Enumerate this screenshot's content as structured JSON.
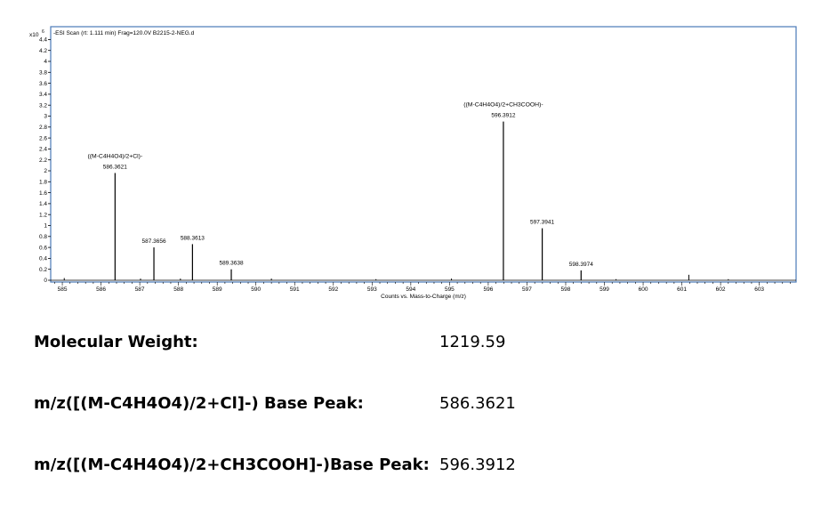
{
  "chart_data": {
    "type": "bar",
    "title": "-ESI Scan (rt: 1.111 min) Frag=120.0V B2215-2-NEG.d",
    "y_scale_label": "x10",
    "y_scale_exp": "6",
    "xlabel": "Counts vs. Mass-to-Charge (m/z)",
    "xlim": [
      584.7,
      603.95
    ],
    "ylim": [
      0,
      4.55
    ],
    "x_ticks": [
      585,
      586,
      587,
      588,
      589,
      590,
      591,
      592,
      593,
      594,
      595,
      596,
      597,
      598,
      599,
      600,
      601,
      602,
      603
    ],
    "y_ticks": [
      0,
      0.2,
      0.4,
      0.6,
      0.8,
      1,
      1.2,
      1.4,
      1.6,
      1.8,
      2,
      2.2,
      2.4,
      2.6,
      2.8,
      3,
      3.2,
      3.4,
      3.6,
      3.8,
      4,
      4.2,
      4.4
    ],
    "peaks": [
      {
        "x": 586.3621,
        "y": 1.96,
        "label": "586.3621"
      },
      {
        "x": 587.3656,
        "y": 0.6,
        "label": "587.3656"
      },
      {
        "x": 588.3613,
        "y": 0.66,
        "label": "588.3613"
      },
      {
        "x": 589.3638,
        "y": 0.2,
        "label": "589.3638"
      },
      {
        "x": 596.3912,
        "y": 2.9,
        "label": "596.3912"
      },
      {
        "x": 597.3941,
        "y": 0.95,
        "label": "597.3941"
      },
      {
        "x": 598.3974,
        "y": 0.18,
        "label": "598.3974"
      }
    ],
    "minor_peaks": [
      {
        "x": 585.05,
        "y": 0.04
      },
      {
        "x": 587.02,
        "y": 0.03
      },
      {
        "x": 588.05,
        "y": 0.03
      },
      {
        "x": 590.4,
        "y": 0.03
      },
      {
        "x": 593.1,
        "y": 0.02
      },
      {
        "x": 595.05,
        "y": 0.03
      },
      {
        "x": 599.3,
        "y": 0.02
      },
      {
        "x": 601.18,
        "y": 0.1
      },
      {
        "x": 602.2,
        "y": 0.02
      }
    ],
    "annotations": [
      {
        "x": 586.3621,
        "y": 1.96,
        "text": "((M-C4H4O4)/2+Cl)-"
      },
      {
        "x": 596.3912,
        "y": 2.9,
        "text": "((M-C4H4O4)/2+CH3COOH)-"
      }
    ]
  },
  "info": [
    {
      "label": "Molecular Weight:",
      "value": "1219.59"
    },
    {
      "label": "m/z([(M-C4H4O4)/2+Cl]-) Base Peak:",
      "value": "586.3621"
    },
    {
      "label": "m/z([(M-C4H4O4)/2+CH3COOH]-)Base Peak:",
      "value": "596.3912"
    }
  ]
}
